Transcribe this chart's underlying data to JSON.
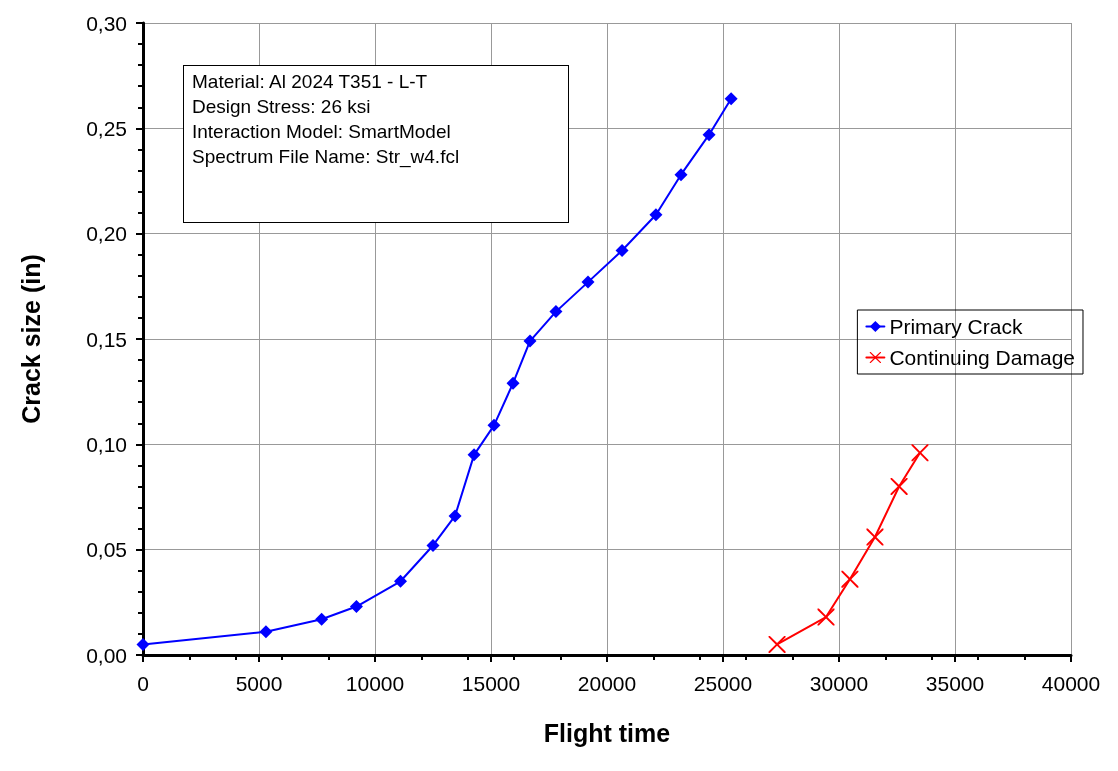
{
  "chart_data": {
    "type": "line",
    "xlabel": "Flight time",
    "ylabel": "Crack size (in)",
    "annotations": [
      "Material: Al 2024 T351 - L-T",
      "Design Stress: 26 ksi",
      "Interaction Model: SmartModel",
      "Spectrum File Name: Str_w4.fcl"
    ],
    "series": [
      {
        "name": "Primary Crack",
        "color": "#0000ff",
        "marker": "diamond",
        "x": [
          0,
          5300,
          7700,
          9200,
          11100,
          12500,
          13450,
          14270,
          15130,
          15950,
          16680,
          17800,
          19180,
          20650,
          22110,
          23190,
          24400,
          25350
        ],
        "values": [
          0.005,
          0.011,
          0.017,
          0.023,
          0.035,
          0.052,
          0.066,
          0.095,
          0.109,
          0.129,
          0.149,
          0.163,
          0.177,
          0.192,
          0.209,
          0.228,
          0.247,
          0.264
        ]
      },
      {
        "name": "Continuing Damage",
        "color": "#ff0000",
        "marker": "cross",
        "x": [
          27330,
          29440,
          30470,
          31550,
          32590,
          33490
        ],
        "values": [
          0.005,
          0.018,
          0.036,
          0.056,
          0.08,
          0.096
        ]
      }
    ],
    "xlim": [
      0,
      40000
    ],
    "xticks": [
      0,
      5000,
      10000,
      15000,
      20000,
      25000,
      30000,
      35000,
      40000
    ],
    "ylim": [
      0,
      0.3
    ],
    "yticks": [
      {
        "value": 0,
        "label": "0,00"
      },
      {
        "value": 0.05,
        "label": "0,05"
      },
      {
        "value": 0.1,
        "label": "0,10"
      },
      {
        "value": 0.15,
        "label": "0,15"
      },
      {
        "value": 0.2,
        "label": "0,20"
      },
      {
        "value": 0.25,
        "label": "0,25"
      },
      {
        "value": 0.3,
        "label": "0,30"
      }
    ],
    "grid": true,
    "legend": "right",
    "line_style": "solid"
  }
}
